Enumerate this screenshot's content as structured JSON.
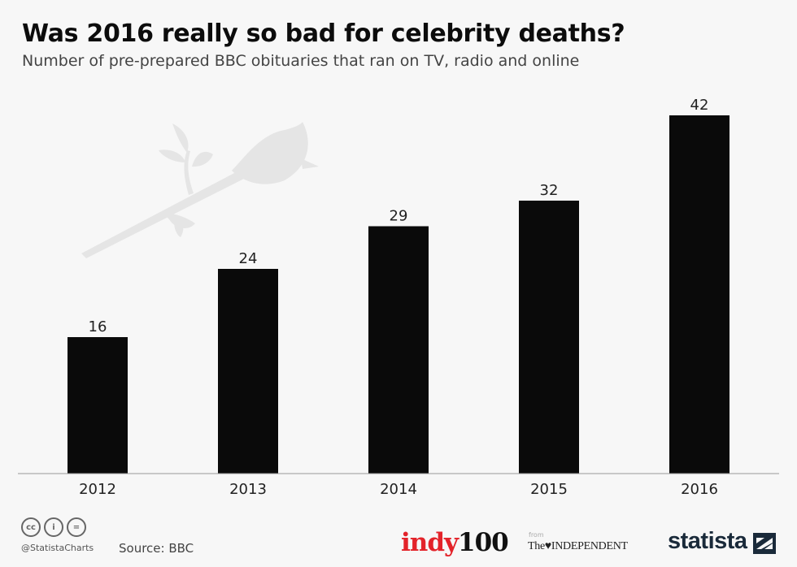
{
  "title": "Was 2016 really so bad for celebrity deaths?",
  "subtitle": "Number of pre-prepared BBC obituaries that ran on TV, radio and online",
  "chart_data": {
    "type": "bar",
    "categories": [
      "2012",
      "2013",
      "2014",
      "2015",
      "2016"
    ],
    "values": [
      16,
      24,
      29,
      32,
      42
    ],
    "data_labels": [
      "16",
      "24",
      "29",
      "32",
      "42"
    ],
    "ylim": [
      0,
      42
    ],
    "grid": false,
    "bar_color": "#0a0a0a",
    "background_color": "#f7f7f7"
  },
  "footer": {
    "license_icons": [
      "cc-icon",
      "by-icon",
      "nd-icon"
    ],
    "license_text": [
      "cc",
      "i",
      "="
    ],
    "handle": "@StatistaCharts",
    "source": "Source: BBC",
    "indy_a": "indy",
    "indy_b": "100",
    "from": "from",
    "independent": "The♥INDEPENDENT",
    "statista": "statista",
    "accent": "#e3232a"
  }
}
